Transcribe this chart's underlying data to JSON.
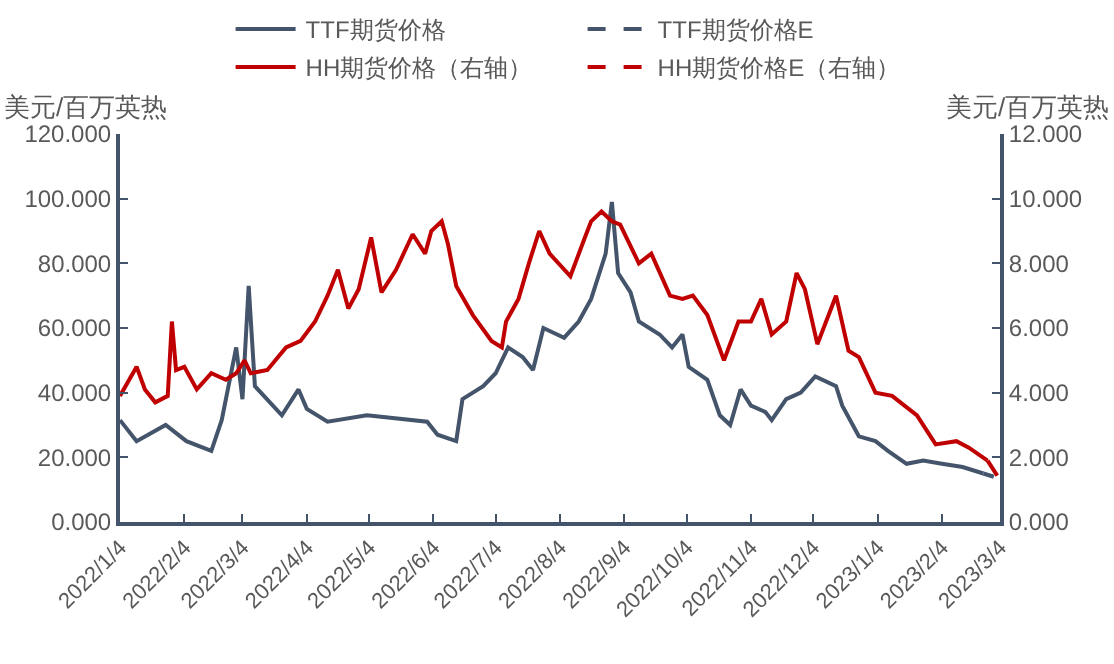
{
  "chart_data": {
    "type": "line",
    "ylabel": "美元/百万英热",
    "y2label": "美元/百万英热",
    "legend": "top",
    "line_style": "solid",
    "marker": "none",
    "grid": false,
    "xlim": [
      "2022-01-04",
      "2023-03-04"
    ],
    "xticks": [
      {
        "value": "2022-01-04",
        "label": "2022/1/4"
      },
      {
        "value": "2022-02-04",
        "label": "2022/2/4"
      },
      {
        "value": "2022-03-04",
        "label": "2022/3/4"
      },
      {
        "value": "2022-04-04",
        "label": "2022/4/4"
      },
      {
        "value": "2022-05-04",
        "label": "2022/5/4"
      },
      {
        "value": "2022-06-04",
        "label": "2022/6/4"
      },
      {
        "value": "2022-07-04",
        "label": "2022/7/4"
      },
      {
        "value": "2022-08-04",
        "label": "2022/8/4"
      },
      {
        "value": "2022-09-04",
        "label": "2022/9/4"
      },
      {
        "value": "2022-10-04",
        "label": "2022/10/4"
      },
      {
        "value": "2022-11-04",
        "label": "2022/11/4"
      },
      {
        "value": "2022-12-04",
        "label": "2022/12/4"
      },
      {
        "value": "2023-01-04",
        "label": "2023/1/4"
      },
      {
        "value": "2023-02-04",
        "label": "2023/2/4"
      },
      {
        "value": "2023-03-04",
        "label": "2023/3/4"
      }
    ],
    "ylim": [
      0,
      120
    ],
    "yticks": [
      {
        "value": 0,
        "label": "0.000"
      },
      {
        "value": 20,
        "label": "20.000"
      },
      {
        "value": 40,
        "label": "40.000"
      },
      {
        "value": 60,
        "label": "60.000"
      },
      {
        "value": 80,
        "label": "80.000"
      },
      {
        "value": 100,
        "label": "100.000"
      },
      {
        "value": 120,
        "label": "120.000"
      }
    ],
    "y2lim": [
      0,
      12
    ],
    "y2ticks": [
      {
        "value": 0,
        "label": "0.000"
      },
      {
        "value": 2,
        "label": "2.000"
      },
      {
        "value": 4,
        "label": "4.000"
      },
      {
        "value": 6,
        "label": "6.000"
      },
      {
        "value": 8,
        "label": "8.000"
      },
      {
        "value": 10,
        "label": "10.000"
      },
      {
        "value": 12,
        "label": "12.000"
      }
    ],
    "series": [
      {
        "name": "TTF期货价格",
        "color": "#44546a",
        "x": [
          "2022-01-04",
          "2022-01-12",
          "2022-01-26",
          "2022-02-05",
          "2022-02-17",
          "2022-02-22",
          "2022-03-01",
          "2022-03-04",
          "2022-03-07",
          "2022-03-10",
          "2022-03-23",
          "2022-03-31",
          "2022-04-04",
          "2022-04-14",
          "2022-05-03",
          "2022-06-01",
          "2022-06-06",
          "2022-06-15",
          "2022-06-18",
          "2022-06-28",
          "2022-07-04",
          "2022-07-10",
          "2022-07-17",
          "2022-07-22",
          "2022-07-27",
          "2022-08-06",
          "2022-08-13",
          "2022-08-19",
          "2022-08-26",
          "2022-08-29",
          "2022-09-01",
          "2022-09-07",
          "2022-09-11",
          "2022-09-21",
          "2022-09-27",
          "2022-10-02",
          "2022-10-05",
          "2022-10-14",
          "2022-10-20",
          "2022-10-25",
          "2022-10-30",
          "2022-11-04",
          "2022-11-11",
          "2022-11-14",
          "2022-11-21",
          "2022-11-28",
          "2022-12-05",
          "2022-12-15",
          "2022-12-18",
          "2022-12-26",
          "2023-01-03",
          "2023-01-09",
          "2023-01-18",
          "2023-01-26",
          "2023-02-04",
          "2023-02-14",
          "2023-02-24"
        ],
        "values": [
          31.5,
          25,
          30,
          25,
          22,
          31.5,
          54,
          38,
          73,
          42,
          33,
          41,
          35,
          31,
          33,
          31,
          27,
          25,
          38,
          42,
          46,
          54,
          51,
          47,
          60,
          57,
          62,
          69,
          83,
          99,
          77,
          71,
          62,
          58,
          54,
          58,
          48,
          44,
          33,
          30,
          41,
          36,
          34,
          31.5,
          38,
          40,
          45,
          42,
          36,
          26.5,
          25,
          22,
          18,
          19,
          18,
          17,
          15
        ]
      },
      {
        "name": "TTF期货价格E",
        "color": "#44546a",
        "line_style": "dashed",
        "x": [
          "2023-02-24",
          "2023-03-01"
        ],
        "values": [
          15,
          14
        ]
      },
      {
        "name": "HH期货价格（右轴）",
        "color": "#c00000",
        "axis": "y2",
        "x": [
          "2022-01-04",
          "2022-01-12",
          "2022-01-16",
          "2022-01-21",
          "2022-01-27",
          "2022-01-29",
          "2022-01-31",
          "2022-02-04",
          "2022-02-10",
          "2022-02-17",
          "2022-02-24",
          "2022-03-01",
          "2022-03-05",
          "2022-03-08",
          "2022-03-16",
          "2022-03-25",
          "2022-04-01",
          "2022-04-08",
          "2022-04-14",
          "2022-04-19",
          "2022-04-24",
          "2022-04-29",
          "2022-05-05",
          "2022-05-10",
          "2022-05-17",
          "2022-05-25",
          "2022-05-31",
          "2022-06-03",
          "2022-06-08",
          "2022-06-11",
          "2022-06-15",
          "2022-06-23",
          "2022-07-02",
          "2022-07-07",
          "2022-07-09",
          "2022-07-15",
          "2022-07-20",
          "2022-07-25",
          "2022-07-30",
          "2022-08-09",
          "2022-08-16",
          "2022-08-19",
          "2022-08-24",
          "2022-08-29",
          "2022-09-02",
          "2022-09-11",
          "2022-09-17",
          "2022-09-26",
          "2022-10-02",
          "2022-10-07",
          "2022-10-14",
          "2022-10-22",
          "2022-10-29",
          "2022-11-04",
          "2022-11-09",
          "2022-11-14",
          "2022-11-21",
          "2022-11-26",
          "2022-11-30",
          "2022-12-06",
          "2022-12-15",
          "2022-12-21",
          "2022-12-26",
          "2023-01-03",
          "2023-01-11",
          "2023-01-23",
          "2023-02-01",
          "2023-02-11",
          "2023-02-17",
          "2023-02-26"
        ],
        "values": [
          3.9,
          4.8,
          4.1,
          3.7,
          3.9,
          6.2,
          4.7,
          4.8,
          4.1,
          4.6,
          4.4,
          4.6,
          5.0,
          4.6,
          4.7,
          5.4,
          5.6,
          6.2,
          7.0,
          7.8,
          6.6,
          7.2,
          8.8,
          7.1,
          7.8,
          8.9,
          8.3,
          9.0,
          9.3,
          8.6,
          7.3,
          6.4,
          5.6,
          5.4,
          6.2,
          6.9,
          8.0,
          9.0,
          8.3,
          7.6,
          8.8,
          9.3,
          9.6,
          9.3,
          9.2,
          8.0,
          8.3,
          7.0,
          6.9,
          7.0,
          6.4,
          5.0,
          6.2,
          6.2,
          6.9,
          5.8,
          6.2,
          7.7,
          7.2,
          5.5,
          7.0,
          5.3,
          5.1,
          4.0,
          3.9,
          3.3,
          2.4,
          2.5,
          2.3,
          1.9
        ]
      },
      {
        "name": "HH期货价格E（右轴）",
        "color": "#c00000",
        "axis": "y2",
        "line_style": "dashed",
        "x": [
          "2023-02-26",
          "2023-03-04"
        ],
        "values": [
          1.9,
          1.3
        ]
      }
    ]
  }
}
